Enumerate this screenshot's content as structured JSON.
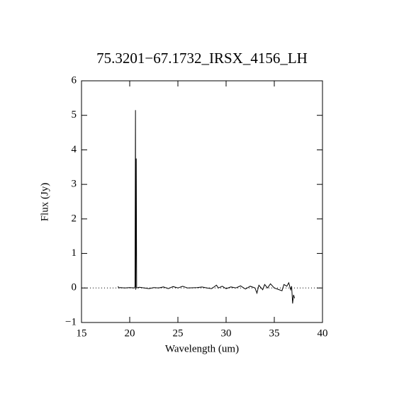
{
  "chart_data": {
    "type": "line",
    "title": "75.3201−67.1732_IRSX_4156_LH",
    "x_label": "Wavelength (um)",
    "y_label": "Flux (Jy)",
    "xlim": [
      15,
      40
    ],
    "xticks": [
      15,
      20,
      25,
      30,
      35,
      40
    ],
    "ylim": [
      -1,
      6
    ],
    "yticks": [
      {
        "value": -1,
        "label": "−1"
      },
      0,
      1,
      2,
      3,
      4,
      5,
      6
    ],
    "zero_line": true,
    "color": "#000000",
    "x": [
      18.8,
      18.85,
      19,
      19.5,
      20,
      20.5,
      20.55,
      20.6,
      20.62,
      20.68,
      20.72,
      21,
      21.5,
      22,
      22.5,
      23,
      23.5,
      24,
      24.5,
      25,
      25.5,
      26,
      27,
      27.5,
      28,
      28.5,
      29,
      29.2,
      29.6,
      30,
      30.5,
      31,
      31.5,
      32,
      32.5,
      33,
      33.2,
      33.4,
      33.8,
      34,
      34.3,
      34.6,
      35,
      35.5,
      35.8,
      36,
      36.3,
      36.5,
      36.7,
      36.8,
      36.9,
      37,
      37.1
    ],
    "values": [
      0.05,
      0,
      0.01,
      0,
      0.01,
      0,
      0.05,
      5.15,
      -0.05,
      3.75,
      0,
      0.02,
      0,
      -0.02,
      0.01,
      0,
      0.03,
      -0.02,
      0.04,
      0,
      0.05,
      0,
      0.01,
      0.03,
      0,
      -0.02,
      0.08,
      0,
      0.05,
      -0.02,
      0.03,
      0,
      0.06,
      -0.03,
      0.05,
      0,
      -0.15,
      0.08,
      -0.05,
      0.1,
      0,
      0.12,
      0,
      -0.05,
      -0.08,
      0.1,
      0.05,
      0.15,
      -0.05,
      0.05,
      -0.45,
      -0.2,
      -0.3
    ]
  }
}
